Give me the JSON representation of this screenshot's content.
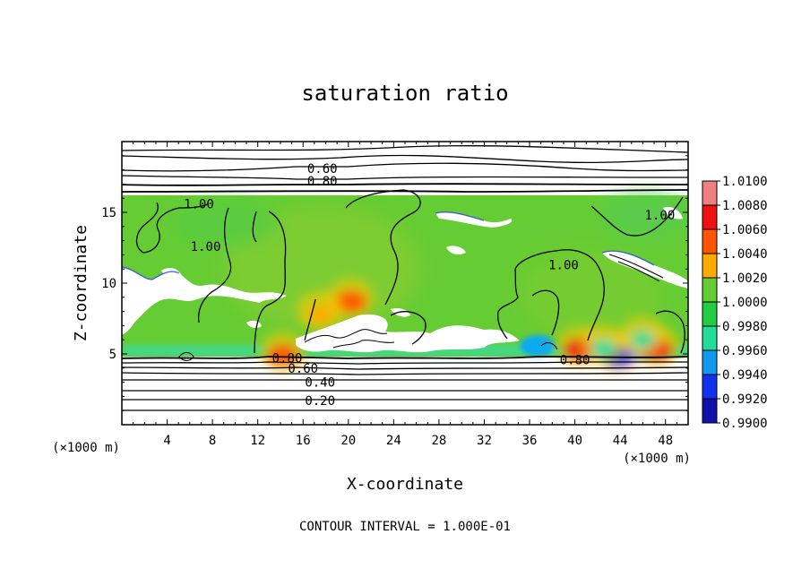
{
  "chart_data": {
    "type": "heatmap",
    "title": "saturation ratio",
    "xlabel": "X-coordinate",
    "ylabel": "Z-coordinate",
    "x_unit": "(×1000 m)",
    "z_unit": "(×1000 m)",
    "xlim": [
      0,
      50
    ],
    "ylim": [
      0,
      20
    ],
    "x_ticks": [
      4,
      8,
      12,
      16,
      20,
      24,
      28,
      32,
      36,
      40,
      44,
      48
    ],
    "y_ticks": [
      5,
      10,
      15
    ],
    "footer": "CONTOUR INTERVAL = 1.000E-01",
    "colorbar": {
      "levels": [
        "1.0100",
        "1.0080",
        "1.0060",
        "1.0040",
        "1.0020",
        "1.0000",
        "0.9980",
        "0.9960",
        "0.9940",
        "0.9920",
        "0.9900"
      ],
      "colors": [
        "#f08080",
        "#ee1111",
        "#ff5500",
        "#ffaa00",
        "#d8e000",
        "#66cc33",
        "#22cc44",
        "#22dd99",
        "#1199ee",
        "#1133ee",
        "#1111aa",
        "#6a0dad"
      ]
    },
    "background_field": {
      "value": 1.0,
      "color": "#66cc33"
    },
    "contour_labels": [
      {
        "text": "0.60",
        "x": 17.7,
        "z": 18.1
      },
      {
        "text": "0.80",
        "x": 17.7,
        "z": 17.2
      },
      {
        "text": "1.00",
        "x": 6.8,
        "z": 15.6
      },
      {
        "text": "1.00",
        "x": 7.4,
        "z": 12.6
      },
      {
        "text": "1.00",
        "x": 39.0,
        "z": 11.3
      },
      {
        "text": "1.00",
        "x": 47.5,
        "z": 14.8
      },
      {
        "text": "0.80",
        "x": 14.6,
        "z": 4.7
      },
      {
        "text": "0.60",
        "x": 16.0,
        "z": 4.0
      },
      {
        "text": "0.40",
        "x": 17.5,
        "z": 3.0
      },
      {
        "text": "0.20",
        "x": 17.5,
        "z": 1.7
      },
      {
        "text": "0.80",
        "x": 40.0,
        "z": 4.6
      }
    ],
    "hotspots": [
      {
        "x": 14.2,
        "z": 4.9,
        "value": 1.006
      },
      {
        "x": 40.4,
        "z": 5.3,
        "value": 1.008
      },
      {
        "x": 47.2,
        "z": 5.3,
        "value": 1.008
      },
      {
        "x": 20.2,
        "z": 8.7,
        "value": 1.006
      },
      {
        "x": 17.5,
        "z": 7.8,
        "value": 1.004
      },
      {
        "x": 43.8,
        "z": 4.8,
        "value": 0.992
      },
      {
        "x": 42.5,
        "z": 5.4,
        "value": 0.996
      },
      {
        "x": 46.0,
        "z": 6.0,
        "value": 0.997
      }
    ]
  }
}
